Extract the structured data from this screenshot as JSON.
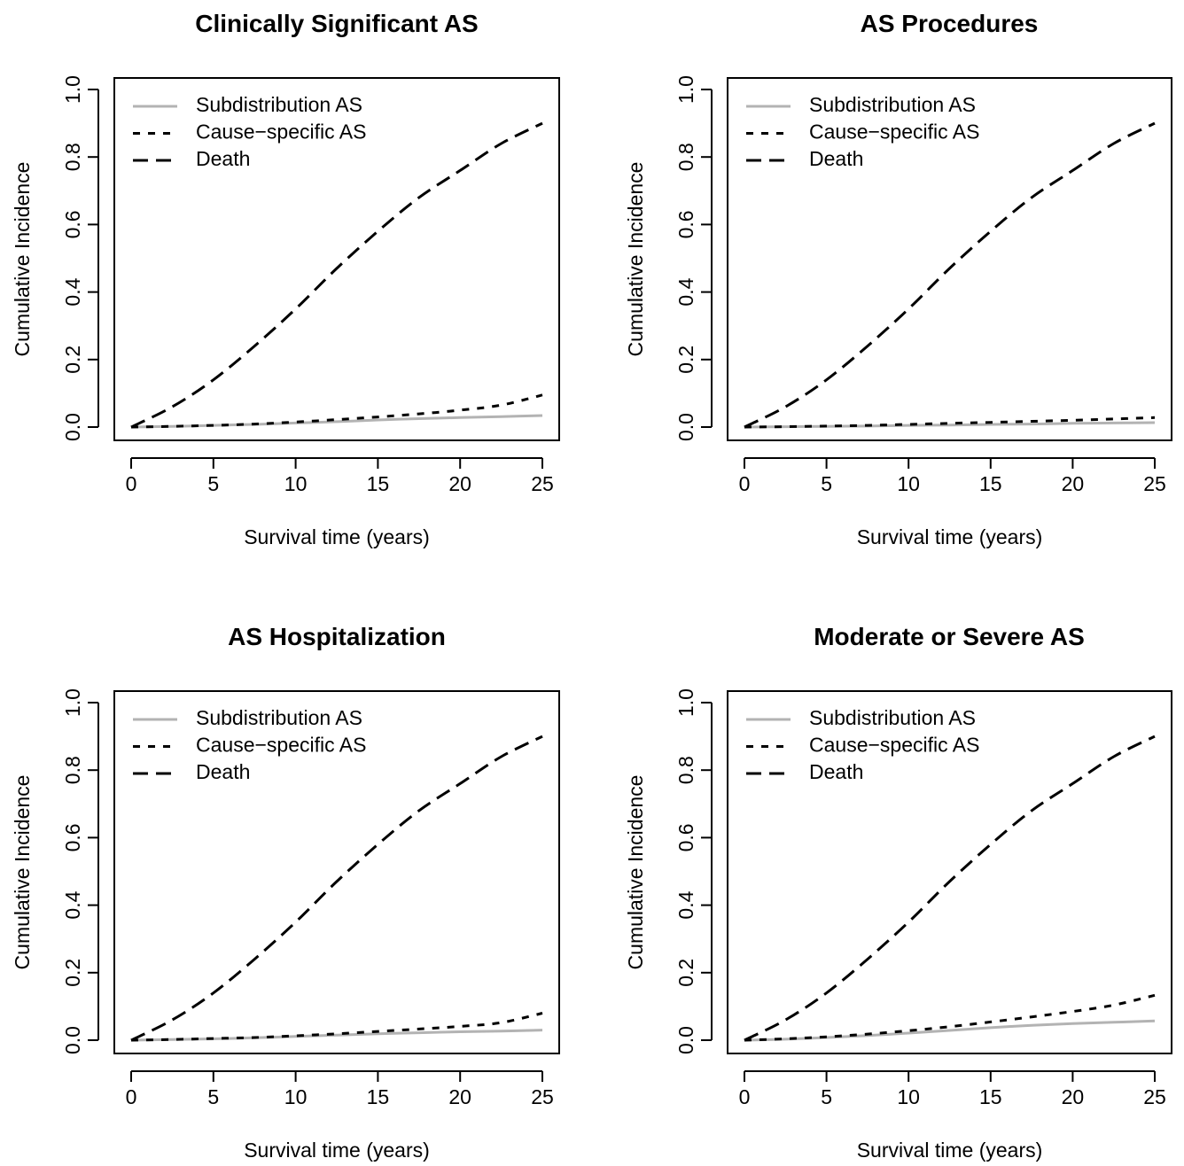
{
  "legend": [
    "Subdistribution AS",
    "Cause−specific AS",
    "Death"
  ],
  "styles": {
    "Subdistribution AS": {
      "color": "#b3b3b3",
      "dash": "none"
    },
    "Cause−specific AS": {
      "color": "#000000",
      "dash": "8,9"
    },
    "Death": {
      "color": "#000000",
      "dash": "17,9"
    }
  },
  "chart_data": [
    {
      "type": "line",
      "title": "Clinically Significant AS",
      "xlabel": "Survival time (years)",
      "ylabel": "Cumulative Incidence",
      "xlim": [
        0,
        25
      ],
      "ylim": [
        0,
        1
      ],
      "xticks": [
        "0",
        "5",
        "10",
        "15",
        "20",
        "25"
      ],
      "yticks": [
        "0.0",
        "0.2",
        "0.4",
        "0.6",
        "0.8",
        "1.0"
      ],
      "legend_position": "top-left",
      "x": [
        0,
        2.5,
        5,
        7.5,
        10,
        12.5,
        15,
        17.5,
        20,
        22.5,
        25
      ],
      "series": [
        {
          "name": "Subdistribution AS",
          "values": [
            0,
            0.002,
            0.005,
            0.008,
            0.012,
            0.016,
            0.021,
            0.025,
            0.028,
            0.031,
            0.034
          ]
        },
        {
          "name": "Cause−specific AS",
          "values": [
            0,
            0.002,
            0.005,
            0.009,
            0.015,
            0.022,
            0.03,
            0.039,
            0.05,
            0.065,
            0.095
          ]
        },
        {
          "name": "Death",
          "values": [
            0,
            0.06,
            0.14,
            0.24,
            0.35,
            0.47,
            0.58,
            0.68,
            0.76,
            0.84,
            0.9
          ]
        }
      ]
    },
    {
      "type": "line",
      "title": "AS Procedures",
      "xlabel": "Survival time (years)",
      "ylabel": "Cumulative Incidence",
      "xlim": [
        0,
        25
      ],
      "ylim": [
        0,
        1
      ],
      "xticks": [
        "0",
        "5",
        "10",
        "15",
        "20",
        "25"
      ],
      "yticks": [
        "0.0",
        "0.2",
        "0.4",
        "0.6",
        "0.8",
        "1.0"
      ],
      "legend_position": "top-left",
      "x": [
        0,
        2.5,
        5,
        7.5,
        10,
        12.5,
        15,
        17.5,
        20,
        22.5,
        25
      ],
      "series": [
        {
          "name": "Subdistribution AS",
          "values": [
            0,
            0.001,
            0.002,
            0.003,
            0.005,
            0.006,
            0.008,
            0.009,
            0.011,
            0.012,
            0.013
          ]
        },
        {
          "name": "Cause−specific AS",
          "values": [
            0,
            0.001,
            0.003,
            0.005,
            0.008,
            0.011,
            0.014,
            0.017,
            0.02,
            0.024,
            0.028
          ]
        },
        {
          "name": "Death",
          "values": [
            0,
            0.06,
            0.14,
            0.24,
            0.35,
            0.47,
            0.58,
            0.68,
            0.76,
            0.84,
            0.9
          ]
        }
      ]
    },
    {
      "type": "line",
      "title": "AS Hospitalization",
      "xlabel": "Survival time (years)",
      "ylabel": "Cumulative Incidence",
      "xlim": [
        0,
        25
      ],
      "ylim": [
        0,
        1
      ],
      "xticks": [
        "0",
        "5",
        "10",
        "15",
        "20",
        "25"
      ],
      "yticks": [
        "0.0",
        "0.2",
        "0.4",
        "0.6",
        "0.8",
        "1.0"
      ],
      "legend_position": "top-left",
      "x": [
        0,
        2.5,
        5,
        7.5,
        10,
        12.5,
        15,
        17.5,
        20,
        22.5,
        25
      ],
      "series": [
        {
          "name": "Subdistribution AS",
          "values": [
            0,
            0.002,
            0.004,
            0.007,
            0.011,
            0.015,
            0.019,
            0.022,
            0.025,
            0.027,
            0.03
          ]
        },
        {
          "name": "Cause−specific AS",
          "values": [
            0,
            0.002,
            0.005,
            0.008,
            0.013,
            0.019,
            0.026,
            0.033,
            0.041,
            0.052,
            0.08
          ]
        },
        {
          "name": "Death",
          "values": [
            0,
            0.06,
            0.14,
            0.24,
            0.35,
            0.47,
            0.58,
            0.68,
            0.76,
            0.84,
            0.9
          ]
        }
      ]
    },
    {
      "type": "line",
      "title": "Moderate or Severe AS",
      "xlabel": "Survival time (years)",
      "ylabel": "Cumulative Incidence",
      "xlim": [
        0,
        25
      ],
      "ylim": [
        0,
        1
      ],
      "xticks": [
        "0",
        "5",
        "10",
        "15",
        "20",
        "25"
      ],
      "yticks": [
        "0.0",
        "0.2",
        "0.4",
        "0.6",
        "0.8",
        "1.0"
      ],
      "legend_position": "top-left",
      "x": [
        0,
        2.5,
        5,
        7.5,
        10,
        12.5,
        15,
        17.5,
        20,
        22.5,
        25
      ],
      "series": [
        {
          "name": "Subdistribution AS",
          "values": [
            0,
            0.003,
            0.008,
            0.014,
            0.021,
            0.029,
            0.037,
            0.044,
            0.049,
            0.053,
            0.057
          ]
        },
        {
          "name": "Cause−specific AS",
          "values": [
            0,
            0.004,
            0.01,
            0.018,
            0.028,
            0.04,
            0.054,
            0.069,
            0.085,
            0.104,
            0.133
          ]
        },
        {
          "name": "Death",
          "values": [
            0,
            0.06,
            0.14,
            0.24,
            0.35,
            0.47,
            0.58,
            0.68,
            0.76,
            0.84,
            0.9
          ]
        }
      ]
    }
  ]
}
